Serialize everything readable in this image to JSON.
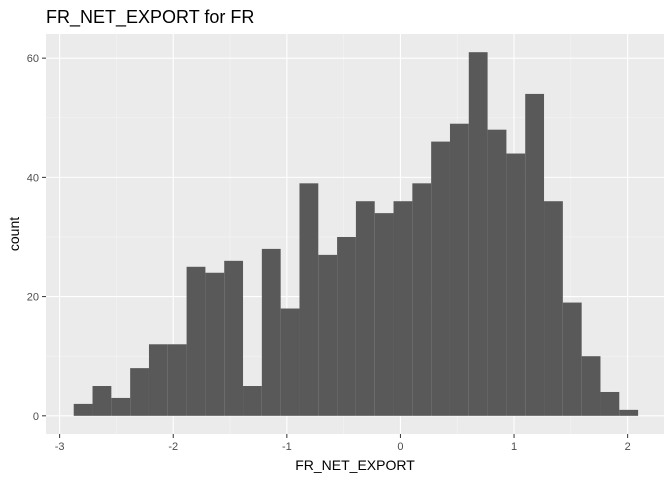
{
  "chart_data": {
    "type": "bar",
    "title": "FR_NET_EXPORT  for FR",
    "xlabel": "FR_NET_EXPORT",
    "ylabel": "count",
    "xlim": [
      -3.12,
      2.32
    ],
    "ylim": [
      -3.05,
      64.05
    ],
    "x_ticks": [
      -3,
      -2,
      -1,
      0,
      1,
      2
    ],
    "x_tick_labels": [
      "-3",
      "-2",
      "-1",
      "0",
      "1",
      "2"
    ],
    "y_ticks": [
      0,
      20,
      40,
      60
    ],
    "y_tick_labels": [
      "0",
      "20",
      "40",
      "60"
    ],
    "grid": true,
    "legend": "none",
    "bin_width": 0.1656,
    "bin_start": -2.876,
    "values": [
      2,
      5,
      3,
      8,
      12,
      12,
      25,
      24,
      26,
      5,
      28,
      18,
      39,
      27,
      30,
      36,
      34,
      36,
      39,
      46,
      49,
      61,
      48,
      44,
      54,
      36,
      19,
      10,
      4,
      1
    ],
    "colors": {
      "bar": "#595959",
      "panel": "#ebebeb",
      "grid_major": "#ffffff",
      "grid_minor": "#f5f5f5",
      "tick": "#333333"
    }
  }
}
